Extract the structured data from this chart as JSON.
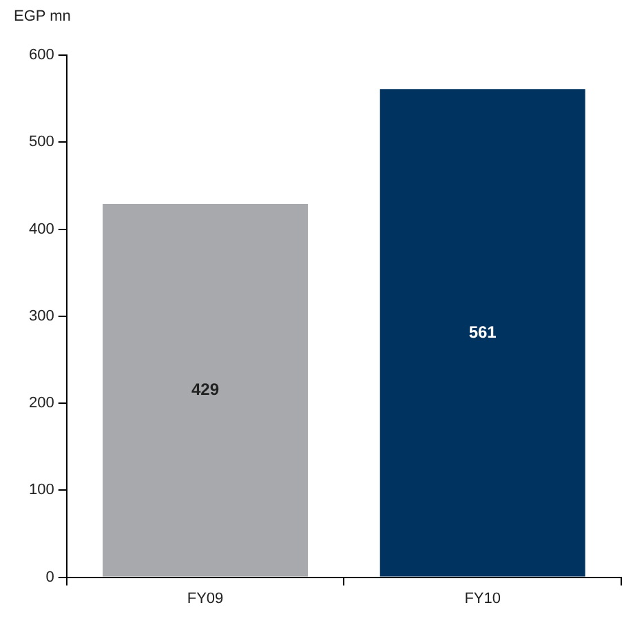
{
  "chart_data": {
    "type": "bar",
    "ylabel": "EGP mn",
    "categories": [
      "FY09",
      "FY10"
    ],
    "values": [
      429,
      561
    ],
    "colors": [
      "#a7a9ac",
      "#00335f"
    ],
    "ylim": [
      0,
      600
    ],
    "yticks": [
      0,
      100,
      200,
      300,
      400,
      500,
      600
    ],
    "grid": false,
    "legend": false,
    "data_labels": true
  }
}
